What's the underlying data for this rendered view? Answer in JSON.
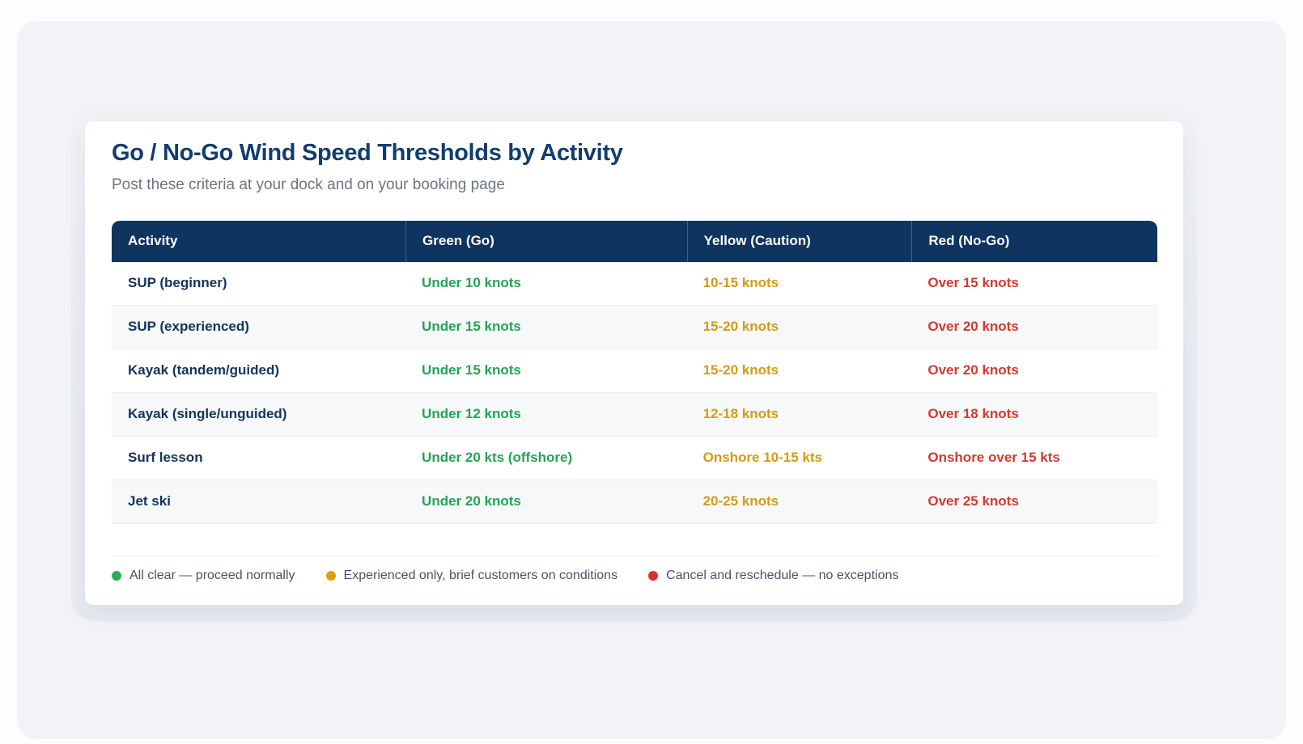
{
  "page": {
    "title": "Go / No-Go Wind Speed Thresholds by Activity",
    "subtitle": "Post these criteria at your dock and on your booking page"
  },
  "table": {
    "columns": {
      "activity": "Activity",
      "green": "Green (Go)",
      "yellow": "Yellow (Caution)",
      "red": "Red (No-Go)"
    },
    "rows": [
      {
        "activity": "SUP (beginner)",
        "green": "Under 10 knots",
        "yellow": "10-15 knots",
        "red": "Over 15 knots"
      },
      {
        "activity": "SUP (experienced)",
        "green": "Under 15 knots",
        "yellow": "15-20 knots",
        "red": "Over 20 knots"
      },
      {
        "activity": "Kayak (tandem/guided)",
        "green": "Under 15 knots",
        "yellow": "15-20 knots",
        "red": "Over 20 knots"
      },
      {
        "activity": "Kayak (single/unguided)",
        "green": "Under 12 knots",
        "yellow": "12-18 knots",
        "red": "Over 18 knots"
      },
      {
        "activity": "Surf lesson",
        "green": "Under 20 kts (offshore)",
        "yellow": "Onshore 10-15 kts",
        "red": "Onshore over 15 kts"
      },
      {
        "activity": "Jet ski",
        "green": "Under 20 knots",
        "yellow": "20-25 knots",
        "red": "Over 25 knots"
      }
    ]
  },
  "legend": [
    {
      "color": "#27ae55",
      "label": "All clear — proceed normally"
    },
    {
      "color": "#d9a10e",
      "label": "Experienced only, brief customers on conditions"
    },
    {
      "color": "#da332e",
      "label": "Cancel and reschedule — no exceptions"
    }
  ],
  "colors": {
    "header_background": "#0e345f",
    "title_text": "#123d6e",
    "go_text": "#23a455",
    "caution_text": "#d49c12",
    "nogo_text": "#d43a2f",
    "page_background": "#f1f3f7",
    "card_background": "#ffffff"
  }
}
